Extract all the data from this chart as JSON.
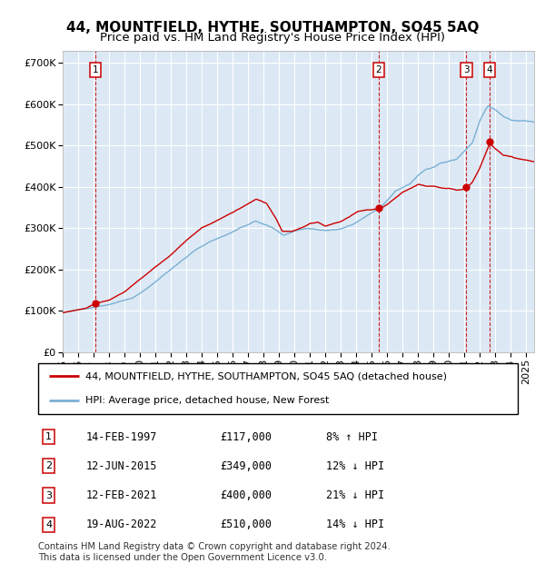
{
  "title": "44, MOUNTFIELD, HYTHE, SOUTHAMPTON, SO45 5AQ",
  "subtitle": "Price paid vs. HM Land Registry's House Price Index (HPI)",
  "ylim": [
    0,
    730000
  ],
  "yticks": [
    0,
    100000,
    200000,
    300000,
    400000,
    500000,
    600000,
    700000
  ],
  "ytick_labels": [
    "£0",
    "£100K",
    "£200K",
    "£300K",
    "£400K",
    "£500K",
    "£600K",
    "£700K"
  ],
  "xlim_start": 1995.0,
  "xlim_end": 2025.5,
  "background_color": "#dce9f5",
  "grid_color": "#ffffff",
  "red_line_color": "#cc0000",
  "blue_line_color": "#7ab0d4",
  "purchases": [
    {
      "label": "1",
      "year": 1997.12,
      "price": 117000
    },
    {
      "label": "2",
      "year": 2015.45,
      "price": 349000
    },
    {
      "label": "3",
      "year": 2021.12,
      "price": 400000
    },
    {
      "label": "4",
      "year": 2022.63,
      "price": 510000
    }
  ],
  "legend_entries": [
    "44, MOUNTFIELD, HYTHE, SOUTHAMPTON, SO45 5AQ (detached house)",
    "HPI: Average price, detached house, New Forest"
  ],
  "table_rows": [
    {
      "num": "1",
      "date": "14-FEB-1997",
      "price": "£117,000",
      "hpi": "8% ↑ HPI"
    },
    {
      "num": "2",
      "date": "12-JUN-2015",
      "price": "£349,000",
      "hpi": "12% ↓ HPI"
    },
    {
      "num": "3",
      "date": "12-FEB-2021",
      "price": "£400,000",
      "hpi": "21% ↓ HPI"
    },
    {
      "num": "4",
      "date": "19-AUG-2022",
      "price": "£510,000",
      "hpi": "14% ↓ HPI"
    }
  ],
  "footnote": "Contains HM Land Registry data © Crown copyright and database right 2024.\nThis data is licensed under the Open Government Licence v3.0.",
  "title_fontsize": 11,
  "subtitle_fontsize": 9.5,
  "tick_fontsize": 8,
  "legend_fontsize": 8,
  "table_fontsize": 8.5
}
